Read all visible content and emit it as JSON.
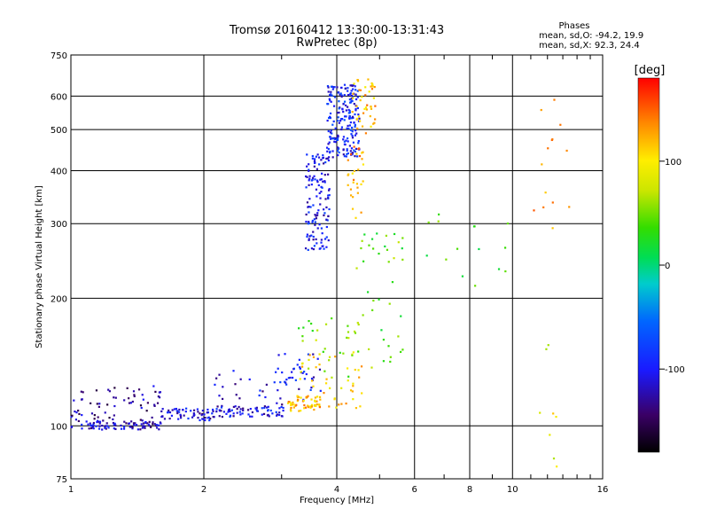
{
  "chart_data": {
    "type": "scatter",
    "title": "Tromsø 20160412 13:30:00-13:31:43",
    "subtitle": "RwPretec (8p)",
    "xlabel": "Frequency [MHz]",
    "ylabel": "Stationary phase Virtual Height [km]",
    "x_scale": "log",
    "y_scale": "log",
    "xlim": [
      1,
      16
    ],
    "ylim": [
      75,
      750
    ],
    "x_ticks": [
      1,
      2,
      4,
      6,
      8,
      10,
      16
    ],
    "y_ticks": [
      75,
      100,
      200,
      300,
      400,
      500,
      600,
      750
    ],
    "grid": true,
    "phase_info": {
      "heading": "Phases",
      "line_o": "mean, sd,O: -94.2, 19.9",
      "line_x": "mean, sd,X:  92.3, 24.4"
    },
    "colorbar": {
      "label": "[deg]",
      "range": [
        -180,
        180
      ],
      "ticks": [
        100,
        0,
        -100
      ],
      "colormap": "rainbow"
    },
    "point_groups": [
      {
        "x": [
          1.0,
          1.6
        ],
        "y": [
          98,
          103
        ],
        "n": 90,
        "phase": -115
      },
      {
        "x": [
          1.0,
          1.6
        ],
        "y": [
          103,
          125
        ],
        "n": 60,
        "phase": -130
      },
      {
        "x": [
          1.6,
          2.1
        ],
        "y": [
          103,
          110
        ],
        "n": 60,
        "phase": -110
      },
      {
        "x": [
          2.1,
          3.1
        ],
        "y": [
          105,
          112
        ],
        "n": 70,
        "phase": -105
      },
      {
        "x": [
          2.1,
          3.2
        ],
        "y": [
          112,
          135
        ],
        "n": 25,
        "phase": -110
      },
      {
        "x": [
          2.9,
          3.7
        ],
        "y": [
          115,
          150
        ],
        "n": 35,
        "phase": -100
      },
      {
        "x": [
          3.1,
          3.7
        ],
        "y": [
          108,
          118
        ],
        "n": 55,
        "phase": 120
      },
      {
        "x": [
          3.3,
          4.6
        ],
        "y": [
          110,
          150
        ],
        "n": 45,
        "phase": 110
      },
      {
        "x": [
          3.2,
          4.8
        ],
        "y": [
          130,
          180
        ],
        "n": 30,
        "phase": 50
      },
      {
        "x": [
          3.4,
          3.85
        ],
        "y": [
          260,
          440
        ],
        "n": 130,
        "phase": -100
      },
      {
        "x": [
          3.8,
          4.5
        ],
        "y": [
          430,
          640
        ],
        "n": 200,
        "phase": -95
      },
      {
        "x": [
          4.3,
          4.9
        ],
        "y": [
          490,
          660
        ],
        "n": 45,
        "phase": 120
      },
      {
        "x": [
          4.2,
          4.6
        ],
        "y": [
          300,
          460
        ],
        "n": 30,
        "phase": 130
      },
      {
        "x": [
          4.4,
          5.7
        ],
        "y": [
          140,
          290
        ],
        "n": 40,
        "phase": 40
      },
      {
        "x": [
          6.0,
          9.8
        ],
        "y": [
          210,
          320
        ],
        "n": 15,
        "phase": 30
      },
      {
        "x": [
          10.5,
          13.5
        ],
        "y": [
          290,
          600
        ],
        "n": 14,
        "phase": 140
      },
      {
        "x": [
          11.5,
          13.0
        ],
        "y": [
          80,
          160
        ],
        "n": 8,
        "phase": 90
      }
    ]
  }
}
